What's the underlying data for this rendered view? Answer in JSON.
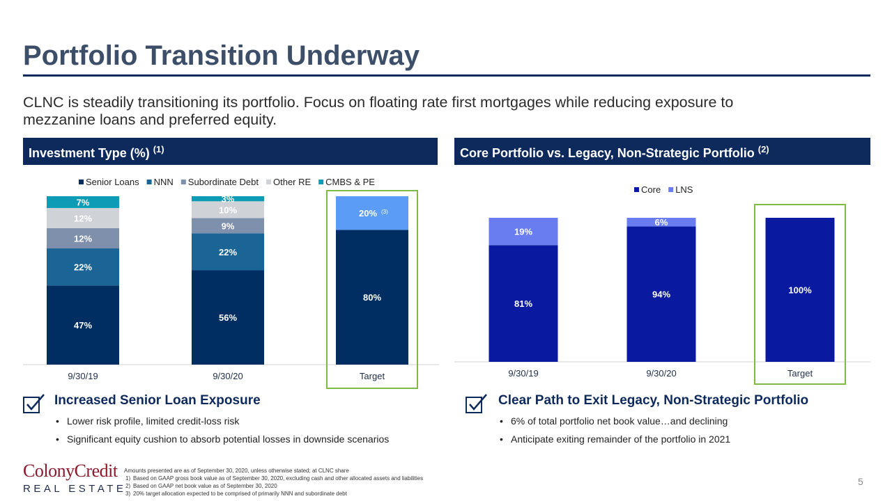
{
  "header": {
    "title": "Portfolio Transition Underway",
    "subtitle": "CLNC is steadily transitioning its portfolio. Focus on floating rate first mortgages while reducing exposure to mezzanine loans and preferred equity."
  },
  "sections": {
    "left_title": "Investment Type (%) ",
    "left_sup": "(1)",
    "right_title": "Core Portfolio vs. Legacy, Non-Strategic Portfolio ",
    "right_sup": "(2)"
  },
  "colors": {
    "navy": "#002d62",
    "teal_blue": "#1a6496",
    "slate": "#7f90ad",
    "light_gray": "#cfd3d8",
    "teal": "#0d9bb5",
    "light_blue": "#5b9cf7",
    "royal": "#0a1aa0",
    "lns": "#6a7df0",
    "highlight_green": "#7dbb42"
  },
  "chart_data": [
    {
      "type": "bar",
      "stacked": true,
      "categories": [
        "9/30/19",
        "9/30/20",
        "Target"
      ],
      "legend": [
        "Senior Loans",
        "NNN",
        "Subordinate Debt",
        "Other RE",
        "CMBS & PE"
      ],
      "series": [
        {
          "name": "Senior Loans",
          "values": [
            47,
            56,
            80
          ],
          "labels": [
            "47%",
            "56%",
            "80%"
          ],
          "color": "#002d62"
        },
        {
          "name": "NNN",
          "values": [
            22,
            22,
            0
          ],
          "labels": [
            "22%",
            "22%",
            ""
          ],
          "color": "#1a6496"
        },
        {
          "name": "Subordinate Debt",
          "values": [
            12,
            9,
            0
          ],
          "labels": [
            "12%",
            "9%",
            ""
          ],
          "color": "#7f90ad"
        },
        {
          "name": "Other RE",
          "values": [
            12,
            10,
            0
          ],
          "labels": [
            "12%",
            "10%",
            ""
          ],
          "color": "#cfd3d8"
        },
        {
          "name": "CMBS & PE",
          "values": [
            7,
            3,
            0
          ],
          "labels": [
            "7%",
            "3%",
            ""
          ],
          "color": "#0d9bb5"
        },
        {
          "name": "",
          "values": [
            0,
            0,
            20
          ],
          "labels": [
            "",
            "",
            "20%"
          ],
          "color": "#5b9cf7"
        }
      ],
      "annotation": "(3)",
      "highlighted_category": "Target",
      "ylim": [
        0,
        100
      ]
    },
    {
      "type": "bar",
      "stacked": true,
      "categories": [
        "9/30/19",
        "9/30/20",
        "Target"
      ],
      "legend": [
        "Core",
        "LNS"
      ],
      "series": [
        {
          "name": "Core",
          "values": [
            81,
            94,
            100
          ],
          "labels": [
            "81%",
            "94%",
            "100%"
          ],
          "color": "#0a1aa0"
        },
        {
          "name": "LNS",
          "values": [
            19,
            6,
            0
          ],
          "labels": [
            "19%",
            "6%",
            ""
          ],
          "color": "#6a7df0"
        }
      ],
      "highlighted_category": "Target",
      "ylim": [
        0,
        100
      ]
    }
  ],
  "takeaways": {
    "left": {
      "title": "Increased Senior Loan Exposure",
      "bullets": [
        "Lower risk profile, limited credit-loss risk",
        "Significant equity cushion to absorb potential losses in downside scenarios"
      ]
    },
    "right": {
      "title": "Clear Path to Exit Legacy, Non-Strategic Portfolio",
      "bullets": [
        "6% of total portfolio net book value…and declining",
        "Anticipate exiting remainder of the portfolio in 2021"
      ]
    }
  },
  "footer": {
    "logo_top": "ColonyCredit",
    "logo_bottom": "REAL ESTATE",
    "note": "Amounts presented are as of September 30, 2020, unless otherwise stated; at CLNC share",
    "footnotes": [
      {
        "num": "1)",
        "text": "Based on GAAP gross book value as of September 30, 2020, excluding cash and other allocated assets and liabilities"
      },
      {
        "num": "2)",
        "text": "Based on GAAP net book value as of September 30, 2020"
      },
      {
        "num": "3)",
        "text": "20% target allocation expected to be comprised of primarily NNN and subordinate debt"
      }
    ],
    "page_number": "5"
  },
  "icons": [
    "checkbox-check-icon"
  ]
}
